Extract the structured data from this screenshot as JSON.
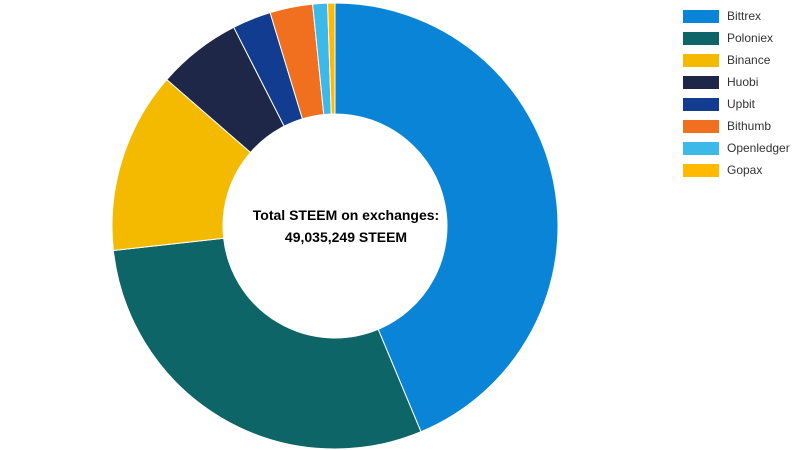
{
  "page": {
    "background_color": "#ffffff"
  },
  "chart_data": {
    "type": "pie",
    "subtype": "donut",
    "center_title": "Total STEEM on exchanges:",
    "center_value": "49,035,249 STEEM",
    "total_steem": 49035249,
    "legend_position": "top-right",
    "start_angle_deg": 0,
    "direction": "clockwise",
    "inner_radius_ratio": 0.5,
    "series": [
      {
        "name": "Bittrex",
        "color": "#0A84D6",
        "percent": 43.7,
        "value_steem_est": 21428404
      },
      {
        "name": "Poloniex",
        "color": "#0D6568",
        "percent": 29.55,
        "value_steem_est": 14489916
      },
      {
        "name": "Binance",
        "color": "#F4BA00",
        "percent": 13.15,
        "value_steem_est": 6448135
      },
      {
        "name": "Huobi",
        "color": "#1F2749",
        "percent": 6.1,
        "value_steem_est": 2991150
      },
      {
        "name": "Upbit",
        "color": "#113C8F",
        "percent": 2.8,
        "value_steem_est": 1372987
      },
      {
        "name": "Bithumb",
        "color": "#F1701F",
        "percent": 3.1,
        "value_steem_est": 1520093
      },
      {
        "name": "Openledger",
        "color": "#3CB9E8",
        "percent": 1.07,
        "value_steem_est": 524677
      },
      {
        "name": "Gopax",
        "color": "#FFBA00",
        "percent": 0.53,
        "value_steem_est": 259887
      }
    ]
  }
}
